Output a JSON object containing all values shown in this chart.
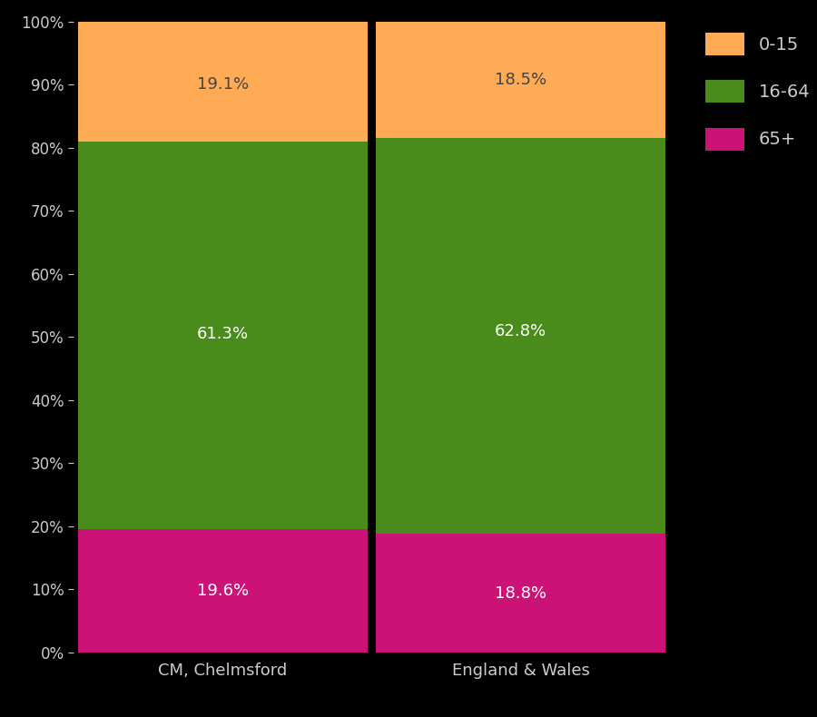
{
  "categories": [
    "CM, Chelmsford",
    "England & Wales"
  ],
  "segments": {
    "65+": [
      19.6,
      18.8
    ],
    "16-64": [
      61.3,
      62.8
    ],
    "0-15": [
      19.1,
      18.5
    ]
  },
  "colors": {
    "65+": "#CC1177",
    "16-64": "#4A8C1C",
    "0-15": "#FFAA55"
  },
  "label_positions": {
    "65+": [
      9.8,
      9.4
    ],
    "16-64": [
      50.45,
      50.9
    ],
    "0-15": [
      90.05,
      90.75
    ]
  },
  "labels": {
    "65+": [
      "19.6%",
      "18.8%"
    ],
    "16-64": [
      "61.3%",
      "62.8%"
    ],
    "0-15": [
      "19.1%",
      "18.5%"
    ]
  },
  "background_color": "#000000",
  "text_color": "#CCCCCC",
  "label_color_65": "#FFFFFF",
  "label_color_1664": "#FFFFFF",
  "label_color_015": "#444444",
  "bar_width": 0.97,
  "ylim": [
    0,
    100
  ],
  "yticks": [
    0,
    10,
    20,
    30,
    40,
    50,
    60,
    70,
    80,
    90,
    100
  ],
  "ytick_labels": [
    "0%",
    "10%",
    "20%",
    "30%",
    "40%",
    "50%",
    "60%",
    "70%",
    "80%",
    "90%",
    "100%"
  ],
  "legend_labels": [
    "0-15",
    "16-64",
    "65+"
  ],
  "figsize": [
    9.0,
    7.9
  ],
  "dpi": 100
}
